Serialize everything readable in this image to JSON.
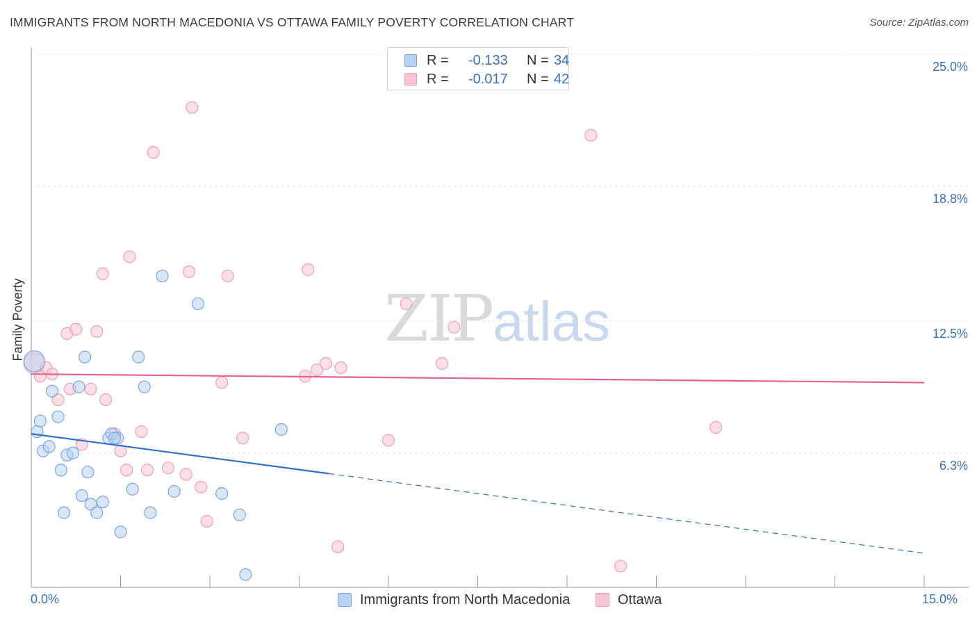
{
  "title": "IMMIGRANTS FROM NORTH MACEDONIA VS OTTAWA FAMILY POVERTY CORRELATION CHART",
  "source": "Source: ZipAtlas.com",
  "watermark": {
    "zip": "ZIP",
    "atlas": "atlas"
  },
  "legend": {
    "r_label": "R =",
    "n_label": "N =",
    "series": [
      {
        "r": "-0.133",
        "n": "34"
      },
      {
        "r": "-0.017",
        "n": "42"
      }
    ]
  },
  "colors": {
    "blue_fill": "#b8d2f3",
    "blue_stroke": "#7aa6e0",
    "blue_line": "#2f6fcf",
    "pink_fill": "#f8c4d4",
    "pink_stroke": "#ee9fb8",
    "pink_line": "#e5628b",
    "grid": "#e4e4e4",
    "tick_text": "#3670c8"
  },
  "chart_data": {
    "type": "scatter",
    "title": "IMMIGRANTS FROM NORTH MACEDONIA VS OTTAWA FAMILY POVERTY CORRELATION CHART",
    "xlabel": "",
    "ylabel": "Family Poverty",
    "xlim": [
      0.0,
      15.0
    ],
    "ylim": [
      0.0,
      25.0
    ],
    "x_tick_labels": [
      "0.0%",
      "15.0%"
    ],
    "y_ticks": [
      6.3,
      12.5,
      18.8,
      25.0
    ],
    "y_tick_labels": [
      "6.3%",
      "12.5%",
      "18.8%",
      "25.0%"
    ],
    "grid": true,
    "legend_position": "top-center",
    "series": [
      {
        "name": "Immigrants from North Macedonia",
        "color": "#7aa6e0",
        "r": -0.133,
        "n": 34,
        "points": [
          [
            0.05,
            10.6
          ],
          [
            0.1,
            7.3
          ],
          [
            0.15,
            7.8
          ],
          [
            0.2,
            6.4
          ],
          [
            0.3,
            6.6
          ],
          [
            0.35,
            9.2
          ],
          [
            0.45,
            8.0
          ],
          [
            0.5,
            5.5
          ],
          [
            0.55,
            3.5
          ],
          [
            0.6,
            6.2
          ],
          [
            0.7,
            6.3
          ],
          [
            0.8,
            9.4
          ],
          [
            0.85,
            4.3
          ],
          [
            0.9,
            10.8
          ],
          [
            0.95,
            5.4
          ],
          [
            1.0,
            3.9
          ],
          [
            1.1,
            3.5
          ],
          [
            1.2,
            4.0
          ],
          [
            1.3,
            7.0
          ],
          [
            1.35,
            7.2
          ],
          [
            1.45,
            7.0
          ],
          [
            1.5,
            2.6
          ],
          [
            1.7,
            4.6
          ],
          [
            1.8,
            10.8
          ],
          [
            1.9,
            9.4
          ],
          [
            2.0,
            3.5
          ],
          [
            2.2,
            14.6
          ],
          [
            2.4,
            4.5
          ],
          [
            2.8,
            13.3
          ],
          [
            3.2,
            4.4
          ],
          [
            3.5,
            3.4
          ],
          [
            3.6,
            0.6
          ],
          [
            4.2,
            7.4
          ],
          [
            1.4,
            7.0
          ]
        ],
        "trend": {
          "x0": 0.0,
          "y0": 7.2,
          "x_solid_end": 5.0,
          "x1": 15.0,
          "y1": 1.6
        }
      },
      {
        "name": "Ottawa",
        "color": "#ee9fb8",
        "r": -0.017,
        "n": 42,
        "points": [
          [
            0.05,
            10.5
          ],
          [
            0.15,
            9.9
          ],
          [
            0.25,
            10.3
          ],
          [
            0.35,
            10.0
          ],
          [
            0.45,
            8.8
          ],
          [
            0.6,
            11.9
          ],
          [
            0.65,
            9.3
          ],
          [
            0.75,
            12.1
          ],
          [
            0.85,
            6.7
          ],
          [
            1.0,
            9.3
          ],
          [
            1.1,
            12.0
          ],
          [
            1.2,
            14.7
          ],
          [
            1.25,
            8.8
          ],
          [
            1.4,
            7.2
          ],
          [
            1.5,
            6.4
          ],
          [
            1.6,
            5.5
          ],
          [
            1.65,
            15.5
          ],
          [
            1.85,
            7.3
          ],
          [
            1.95,
            5.5
          ],
          [
            2.05,
            20.4
          ],
          [
            2.3,
            5.6
          ],
          [
            2.6,
            5.3
          ],
          [
            2.65,
            14.8
          ],
          [
            2.7,
            22.5
          ],
          [
            2.85,
            4.7
          ],
          [
            2.95,
            3.1
          ],
          [
            3.2,
            9.6
          ],
          [
            3.3,
            14.6
          ],
          [
            3.55,
            7.0
          ],
          [
            4.6,
            9.9
          ],
          [
            4.65,
            14.9
          ],
          [
            4.8,
            10.2
          ],
          [
            4.95,
            10.5
          ],
          [
            5.15,
            1.9
          ],
          [
            5.2,
            10.3
          ],
          [
            6.0,
            6.9
          ],
          [
            6.3,
            13.3
          ],
          [
            6.9,
            10.5
          ],
          [
            7.1,
            12.2
          ],
          [
            9.4,
            21.2
          ],
          [
            9.9,
            1.0
          ],
          [
            11.5,
            7.5
          ]
        ],
        "trend": {
          "x0": 0.0,
          "y0": 10.0,
          "x1": 15.0,
          "y1": 9.6
        }
      }
    ]
  }
}
